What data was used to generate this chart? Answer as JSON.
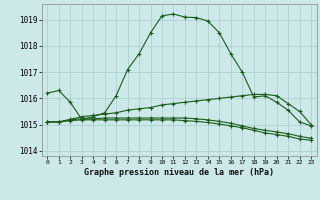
{
  "title": "Graphe pression niveau de la mer (hPa)",
  "background_color": "#cde8e8",
  "line_color": "#1a5c1a",
  "grid_color": "#aacccc",
  "x_labels": [
    "0",
    "1",
    "2",
    "3",
    "4",
    "5",
    "6",
    "7",
    "8",
    "9",
    "10",
    "11",
    "12",
    "13",
    "14",
    "15",
    "16",
    "17",
    "18",
    "19",
    "20",
    "21",
    "22",
    "23"
  ],
  "ylim": [
    1013.8,
    1019.6
  ],
  "yticks": [
    1014,
    1015,
    1016,
    1017,
    1018,
    1019
  ],
  "series": [
    [
      1016.2,
      1016.3,
      1015.85,
      1015.2,
      1015.3,
      1015.45,
      1016.1,
      1017.1,
      1017.7,
      1018.5,
      1019.15,
      1019.22,
      1019.1,
      1019.08,
      1018.95,
      1018.5,
      1017.7,
      1017.0,
      1016.05,
      1016.1,
      1015.85,
      1015.55,
      1015.1,
      1014.95
    ],
    [
      1015.1,
      1015.1,
      1015.2,
      1015.3,
      1015.35,
      1015.4,
      1015.45,
      1015.55,
      1015.6,
      1015.65,
      1015.75,
      1015.8,
      1015.85,
      1015.9,
      1015.95,
      1016.0,
      1016.05,
      1016.1,
      1016.15,
      1016.15,
      1016.1,
      1015.8,
      1015.5,
      1015.0
    ],
    [
      1015.1,
      1015.1,
      1015.18,
      1015.22,
      1015.22,
      1015.25,
      1015.25,
      1015.25,
      1015.25,
      1015.25,
      1015.25,
      1015.25,
      1015.25,
      1015.22,
      1015.18,
      1015.12,
      1015.05,
      1014.95,
      1014.85,
      1014.78,
      1014.72,
      1014.65,
      1014.55,
      1014.48
    ],
    [
      1015.1,
      1015.1,
      1015.15,
      1015.18,
      1015.18,
      1015.18,
      1015.18,
      1015.18,
      1015.18,
      1015.18,
      1015.18,
      1015.18,
      1015.15,
      1015.12,
      1015.08,
      1015.02,
      1014.95,
      1014.88,
      1014.78,
      1014.68,
      1014.62,
      1014.55,
      1014.45,
      1014.4
    ]
  ]
}
